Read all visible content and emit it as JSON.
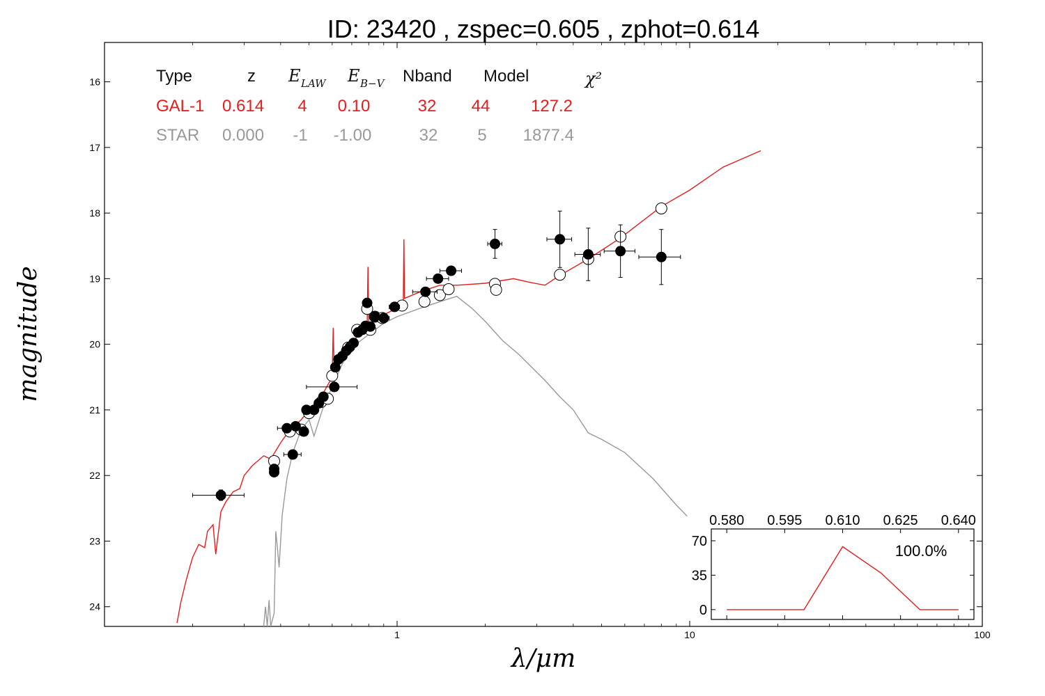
{
  "colors": {
    "galaxy": "#e21e1e",
    "star": "#999999",
    "axis": "#000000"
  },
  "chart_data": [
    {
      "type": "scatter",
      "title": "ID:  23420 , zspec=0.605 , zphot=0.614",
      "xlabel": "λ/μm",
      "ylabel": "magnitude",
      "xscale": "log",
      "yaxis_inverted": true,
      "xlim": [
        0.1,
        100
      ],
      "ylim": [
        24.3,
        15.4
      ],
      "x_ticks": [
        {
          "value": 1,
          "label": "1"
        },
        {
          "value": 10,
          "label": "10"
        },
        {
          "value": 100,
          "label": "100"
        }
      ],
      "y_ticks": [
        {
          "value": 16,
          "label": "16"
        },
        {
          "value": 17,
          "label": "17"
        },
        {
          "value": 18,
          "label": "18"
        },
        {
          "value": 19,
          "label": "19"
        },
        {
          "value": 20,
          "label": "20"
        },
        {
          "value": 21,
          "label": "21"
        },
        {
          "value": 22,
          "label": "22"
        },
        {
          "value": 23,
          "label": "23"
        },
        {
          "value": 24,
          "label": "24"
        }
      ],
      "grid": false,
      "fit_table": {
        "headers": {
          "type": "Type",
          "z": "z",
          "elaw": "E",
          "elaw_sub": "LAW",
          "ebv": "E",
          "ebv_sub": "B−V",
          "nband": "Nband",
          "model": "Model",
          "chi2": "χ²"
        },
        "rows": [
          {
            "type": "GAL-1",
            "z": "0.614",
            "elaw": "4",
            "ebv": "0.10",
            "nband": "32",
            "model": "44",
            "chi2": "127.2",
            "color": "#e21e1e"
          },
          {
            "type": "STAR",
            "z": "0.000",
            "elaw": "-1",
            "ebv": "-1.00",
            "nband": "32",
            "model": "5",
            "chi2": "1877.4",
            "color": "#999999"
          }
        ]
      },
      "series": [
        {
          "kind": "observed",
          "points": [
            {
              "x": 0.25,
              "y": 22.3,
              "xerr": 0.05,
              "yerr": 0.08
            },
            {
              "x": 0.38,
              "y": 21.9,
              "yerr": 0.05
            },
            {
              "x": 0.38,
              "y": 21.95,
              "yerr": 0.05
            },
            {
              "x": 0.44,
              "y": 21.68,
              "xerr": 0.03,
              "yerr": 0.05
            },
            {
              "x": 0.42,
              "y": 21.28,
              "xerr": 0.03,
              "yerr": 0.04
            },
            {
              "x": 0.45,
              "y": 21.25,
              "yerr": 0.04
            },
            {
              "x": 0.48,
              "y": 21.33,
              "yerr": 0.04
            },
            {
              "x": 0.49,
              "y": 21.0,
              "yerr": 0.04
            },
            {
              "x": 0.52,
              "y": 21.0,
              "yerr": 0.04
            },
            {
              "x": 0.54,
              "y": 20.9,
              "yerr": 0.04
            },
            {
              "x": 0.56,
              "y": 20.8,
              "yerr": 0.04
            },
            {
              "x": 0.61,
              "y": 20.65,
              "xerr": 0.12,
              "yerr": 0.05
            },
            {
              "x": 0.615,
              "y": 20.35,
              "yerr": 0.04
            },
            {
              "x": 0.63,
              "y": 20.23,
              "yerr": 0.04
            },
            {
              "x": 0.65,
              "y": 20.18,
              "yerr": 0.04
            },
            {
              "x": 0.67,
              "y": 20.1,
              "yerr": 0.04
            },
            {
              "x": 0.69,
              "y": 20.04,
              "yerr": 0.04
            },
            {
              "x": 0.71,
              "y": 19.98,
              "yerr": 0.04
            },
            {
              "x": 0.735,
              "y": 19.82,
              "yerr": 0.04
            },
            {
              "x": 0.76,
              "y": 19.78,
              "yerr": 0.04
            },
            {
              "x": 0.78,
              "y": 19.72,
              "yerr": 0.04
            },
            {
              "x": 0.79,
              "y": 19.37,
              "yerr": 0.04
            },
            {
              "x": 0.81,
              "y": 19.73,
              "yerr": 0.04
            },
            {
              "x": 0.84,
              "y": 19.58,
              "yerr": 0.04
            },
            {
              "x": 0.9,
              "y": 19.6,
              "xerr": 0.04,
              "yerr": 0.04
            },
            {
              "x": 0.98,
              "y": 19.43,
              "xerr": 0.04,
              "yerr": 0.04
            },
            {
              "x": 1.25,
              "y": 19.2,
              "xerr": 0.12,
              "yerr": 0.05
            },
            {
              "x": 1.38,
              "y": 19.0,
              "xerr": 0.12,
              "yerr": 0.05
            },
            {
              "x": 1.53,
              "y": 18.88,
              "xerr": 0.13,
              "yerr": 0.05
            },
            {
              "x": 2.16,
              "y": 18.47,
              "xerr": 0.12,
              "yerr": 0.22
            },
            {
              "x": 3.6,
              "y": 18.4,
              "xerr": 0.35,
              "yerr": 0.43
            },
            {
              "x": 4.5,
              "y": 18.63,
              "xerr": 0.45,
              "yerr": 0.4
            },
            {
              "x": 5.8,
              "y": 18.58,
              "xerr": 0.7,
              "yerr": 0.4
            },
            {
              "x": 8.0,
              "y": 18.67,
              "xerr": 1.3,
              "yerr": 0.42
            }
          ]
        },
        {
          "kind": "model",
          "points": [
            {
              "x": 0.38,
              "y": 21.78
            },
            {
              "x": 0.43,
              "y": 21.33
            },
            {
              "x": 0.47,
              "y": 21.3
            },
            {
              "x": 0.5,
              "y": 21.05
            },
            {
              "x": 0.55,
              "y": 20.88
            },
            {
              "x": 0.58,
              "y": 20.83
            },
            {
              "x": 0.6,
              "y": 20.48
            },
            {
              "x": 0.68,
              "y": 20.05
            },
            {
              "x": 0.73,
              "y": 19.78
            },
            {
              "x": 0.79,
              "y": 19.46
            },
            {
              "x": 0.81,
              "y": 19.78
            },
            {
              "x": 0.84,
              "y": 19.58
            },
            {
              "x": 0.89,
              "y": 19.6
            },
            {
              "x": 1.04,
              "y": 19.41
            },
            {
              "x": 1.24,
              "y": 19.35
            },
            {
              "x": 1.4,
              "y": 19.25
            },
            {
              "x": 1.5,
              "y": 19.16
            },
            {
              "x": 2.16,
              "y": 19.08
            },
            {
              "x": 2.18,
              "y": 19.17
            },
            {
              "x": 3.6,
              "y": 18.94
            },
            {
              "x": 4.5,
              "y": 18.7
            },
            {
              "x": 5.8,
              "y": 18.36
            },
            {
              "x": 8.0,
              "y": 17.93
            }
          ]
        },
        {
          "kind": "galaxy-template",
          "color": "#e21e1e",
          "points": [
            {
              "x": 0.177,
              "y": 24.25
            },
            {
              "x": 0.182,
              "y": 23.95
            },
            {
              "x": 0.19,
              "y": 23.6
            },
            {
              "x": 0.2,
              "y": 23.25
            },
            {
              "x": 0.21,
              "y": 23.05
            },
            {
              "x": 0.22,
              "y": 23.1
            },
            {
              "x": 0.225,
              "y": 22.85
            },
            {
              "x": 0.235,
              "y": 22.75
            },
            {
              "x": 0.24,
              "y": 23.2
            },
            {
              "x": 0.25,
              "y": 22.55
            },
            {
              "x": 0.26,
              "y": 22.4
            },
            {
              "x": 0.275,
              "y": 22.25
            },
            {
              "x": 0.29,
              "y": 22.2
            },
            {
              "x": 0.3,
              "y": 22.0
            },
            {
              "x": 0.32,
              "y": 21.85
            },
            {
              "x": 0.35,
              "y": 21.7
            },
            {
              "x": 0.37,
              "y": 21.75
            },
            {
              "x": 0.4,
              "y": 21.5
            },
            {
              "x": 0.43,
              "y": 21.3
            },
            {
              "x": 0.47,
              "y": 21.15
            },
            {
              "x": 0.5,
              "y": 21.0
            },
            {
              "x": 0.55,
              "y": 20.8
            },
            {
              "x": 0.6,
              "y": 20.5
            },
            {
              "x": 0.605,
              "y": 19.75
            },
            {
              "x": 0.61,
              "y": 20.45
            },
            {
              "x": 0.65,
              "y": 20.15
            },
            {
              "x": 0.7,
              "y": 20.0
            },
            {
              "x": 0.75,
              "y": 19.8
            },
            {
              "x": 0.79,
              "y": 19.72
            },
            {
              "x": 0.795,
              "y": 18.82
            },
            {
              "x": 0.8,
              "y": 19.68
            },
            {
              "x": 0.85,
              "y": 19.63
            },
            {
              "x": 0.9,
              "y": 19.55
            },
            {
              "x": 1.0,
              "y": 19.45
            },
            {
              "x": 1.05,
              "y": 19.35
            },
            {
              "x": 1.055,
              "y": 18.4
            },
            {
              "x": 1.06,
              "y": 19.3
            },
            {
              "x": 1.2,
              "y": 19.2
            },
            {
              "x": 1.4,
              "y": 19.1
            },
            {
              "x": 1.6,
              "y": 19.1
            },
            {
              "x": 2.0,
              "y": 19.07
            },
            {
              "x": 2.5,
              "y": 19.0
            },
            {
              "x": 2.8,
              "y": 19.05
            },
            {
              "x": 3.2,
              "y": 19.1
            },
            {
              "x": 3.6,
              "y": 18.95
            },
            {
              "x": 4.5,
              "y": 18.7
            },
            {
              "x": 5.8,
              "y": 18.38
            },
            {
              "x": 8.0,
              "y": 17.9
            },
            {
              "x": 10.0,
              "y": 17.65
            },
            {
              "x": 13.0,
              "y": 17.3
            },
            {
              "x": 17.5,
              "y": 17.05
            }
          ]
        },
        {
          "kind": "star-template",
          "color": "#999999",
          "points": [
            {
              "x": 0.35,
              "y": 24.3
            },
            {
              "x": 0.355,
              "y": 24.0
            },
            {
              "x": 0.36,
              "y": 24.3
            },
            {
              "x": 0.365,
              "y": 23.9
            },
            {
              "x": 0.37,
              "y": 24.3
            },
            {
              "x": 0.38,
              "y": 24.1
            },
            {
              "x": 0.385,
              "y": 22.85
            },
            {
              "x": 0.39,
              "y": 23.1
            },
            {
              "x": 0.395,
              "y": 23.4
            },
            {
              "x": 0.405,
              "y": 22.6
            },
            {
              "x": 0.42,
              "y": 22.05
            },
            {
              "x": 0.44,
              "y": 21.65
            },
            {
              "x": 0.47,
              "y": 21.3
            },
            {
              "x": 0.5,
              "y": 21.15
            },
            {
              "x": 0.52,
              "y": 21.4
            },
            {
              "x": 0.56,
              "y": 20.95
            },
            {
              "x": 0.6,
              "y": 20.65
            },
            {
              "x": 0.65,
              "y": 20.3
            },
            {
              "x": 0.7,
              "y": 20.05
            },
            {
              "x": 0.8,
              "y": 19.85
            },
            {
              "x": 0.9,
              "y": 19.68
            },
            {
              "x": 1.0,
              "y": 19.58
            },
            {
              "x": 1.2,
              "y": 19.45
            },
            {
              "x": 1.4,
              "y": 19.35
            },
            {
              "x": 1.6,
              "y": 19.27
            },
            {
              "x": 1.8,
              "y": 19.45
            },
            {
              "x": 2.0,
              "y": 19.65
            },
            {
              "x": 2.3,
              "y": 19.95
            },
            {
              "x": 2.6,
              "y": 20.15
            },
            {
              "x": 3.2,
              "y": 20.55
            },
            {
              "x": 3.6,
              "y": 20.8
            },
            {
              "x": 4.0,
              "y": 21.0
            },
            {
              "x": 4.5,
              "y": 21.35
            },
            {
              "x": 5.0,
              "y": 21.45
            },
            {
              "x": 6.0,
              "y": 21.65
            },
            {
              "x": 7.5,
              "y": 22.05
            },
            {
              "x": 9.0,
              "y": 22.45
            },
            {
              "x": 9.8,
              "y": 22.62
            }
          ]
        }
      ]
    },
    {
      "type": "line",
      "role": "inset",
      "label": "100.0%",
      "xlim": [
        0.576,
        0.644
      ],
      "ylim": [
        -10,
        82
      ],
      "x_ticks": [
        {
          "value": 0.58,
          "label": "0.580"
        },
        {
          "value": 0.595,
          "label": "0.595"
        },
        {
          "value": 0.61,
          "label": "0.610"
        },
        {
          "value": 0.625,
          "label": "0.625"
        },
        {
          "value": 0.64,
          "label": "0.640"
        }
      ],
      "y_ticks": [
        {
          "value": 0,
          "label": "0"
        },
        {
          "value": 35,
          "label": "35"
        },
        {
          "value": 70,
          "label": "70"
        }
      ],
      "color": "#e21e1e",
      "x": [
        0.58,
        0.6,
        0.61,
        0.62,
        0.63,
        0.64
      ],
      "y": [
        0,
        0,
        64,
        37,
        0,
        0
      ]
    }
  ]
}
